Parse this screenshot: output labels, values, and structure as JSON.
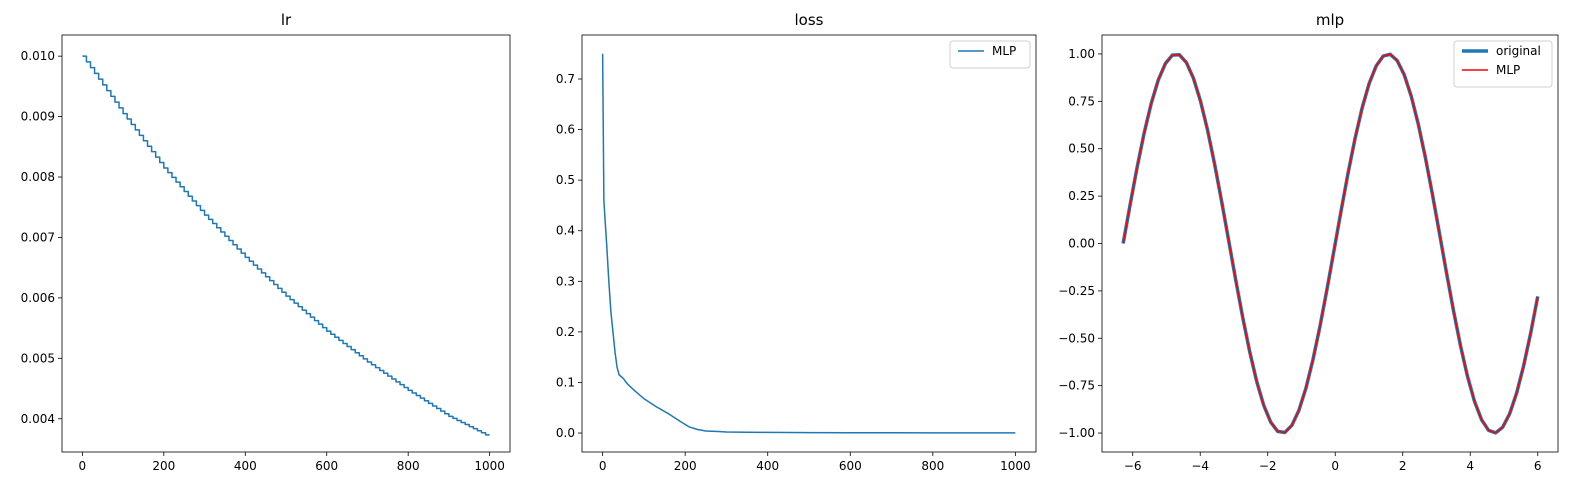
{
  "chart_data": [
    {
      "type": "line",
      "title": "lr",
      "xlabel": "",
      "ylabel": "",
      "xlim": [
        -50,
        1050
      ],
      "ylim": [
        0.00345,
        0.01035
      ],
      "xticks": [
        0,
        200,
        400,
        600,
        800,
        1000
      ],
      "xtick_labels": [
        "0",
        "200",
        "400",
        "600",
        "800",
        "1000"
      ],
      "yticks": [
        0.004,
        0.005,
        0.006,
        0.007,
        0.008,
        0.009,
        0.01
      ],
      "ytick_labels": [
        "0.004",
        "0.005",
        "0.006",
        "0.007",
        "0.008",
        "0.009",
        "0.010"
      ],
      "grid": false,
      "legend": null,
      "series": [
        {
          "step": true,
          "color": "#1f77b4",
          "x": [
            0,
            100,
            200,
            300,
            400,
            500,
            600,
            700,
            800,
            900,
            1000
          ],
          "y": [
            0.01,
            0.00905,
            0.00815,
            0.00737,
            0.00667,
            0.00603,
            0.00545,
            0.00494,
            0.00447,
            0.00404,
            0.0037
          ]
        }
      ]
    },
    {
      "type": "line",
      "title": "loss",
      "xlabel": "",
      "ylabel": "",
      "xlim": [
        -50,
        1050
      ],
      "ylim": [
        -0.0375,
        0.787
      ],
      "xticks": [
        0,
        200,
        400,
        600,
        800,
        1000
      ],
      "xtick_labels": [
        "0",
        "200",
        "400",
        "600",
        "800",
        "1000"
      ],
      "yticks": [
        0.0,
        0.1,
        0.2,
        0.3,
        0.4,
        0.5,
        0.6,
        0.7
      ],
      "ytick_labels": [
        "0.0",
        "0.1",
        "0.2",
        "0.3",
        "0.4",
        "0.5",
        "0.6",
        "0.7"
      ],
      "grid": false,
      "legend": "upper right",
      "series": [
        {
          "name": "MLP",
          "color": "#1f77b4",
          "x": [
            0,
            3,
            6,
            10,
            15,
            20,
            25,
            30,
            35,
            40,
            50,
            60,
            80,
            100,
            130,
            160,
            190,
            210,
            230,
            250,
            280,
            300,
            350,
            400,
            500,
            600,
            700,
            800,
            900,
            1000
          ],
          "y": [
            0.75,
            0.46,
            0.42,
            0.37,
            0.3,
            0.24,
            0.2,
            0.16,
            0.13,
            0.115,
            0.108,
            0.097,
            0.082,
            0.068,
            0.052,
            0.038,
            0.022,
            0.012,
            0.007,
            0.004,
            0.003,
            0.002,
            0.0015,
            0.0012,
            0.0008,
            0.0006,
            0.0005,
            0.0004,
            0.0003,
            0.0003
          ]
        }
      ]
    },
    {
      "type": "line",
      "title": "mlp",
      "xlabel": "",
      "ylabel": "",
      "xlim": [
        -6.91,
        6.6
      ],
      "ylim": [
        -1.1,
        1.1
      ],
      "xticks": [
        -6,
        -4,
        -2,
        0,
        2,
        4,
        6
      ],
      "xtick_labels": [
        "−6",
        "−4",
        "−2",
        "0",
        "2",
        "4",
        "6"
      ],
      "yticks": [
        -1.0,
        -0.75,
        -0.5,
        -0.25,
        0.0,
        0.25,
        0.5,
        0.75,
        1.0
      ],
      "ytick_labels": [
        "−1.00",
        "−0.75",
        "−0.50",
        "−0.25",
        "0.00",
        "0.25",
        "0.50",
        "0.75",
        "1.00"
      ],
      "grid": false,
      "legend": "upper right",
      "series": [
        {
          "name": "original",
          "color": "#1f77b4",
          "function": "sin",
          "x_start": -6.283,
          "x_end": 6.0,
          "points": 60
        },
        {
          "name": "MLP",
          "color": "#ff0000",
          "function": "sin",
          "x_start": -6.283,
          "x_end": 6.0,
          "points": 60
        }
      ]
    }
  ]
}
